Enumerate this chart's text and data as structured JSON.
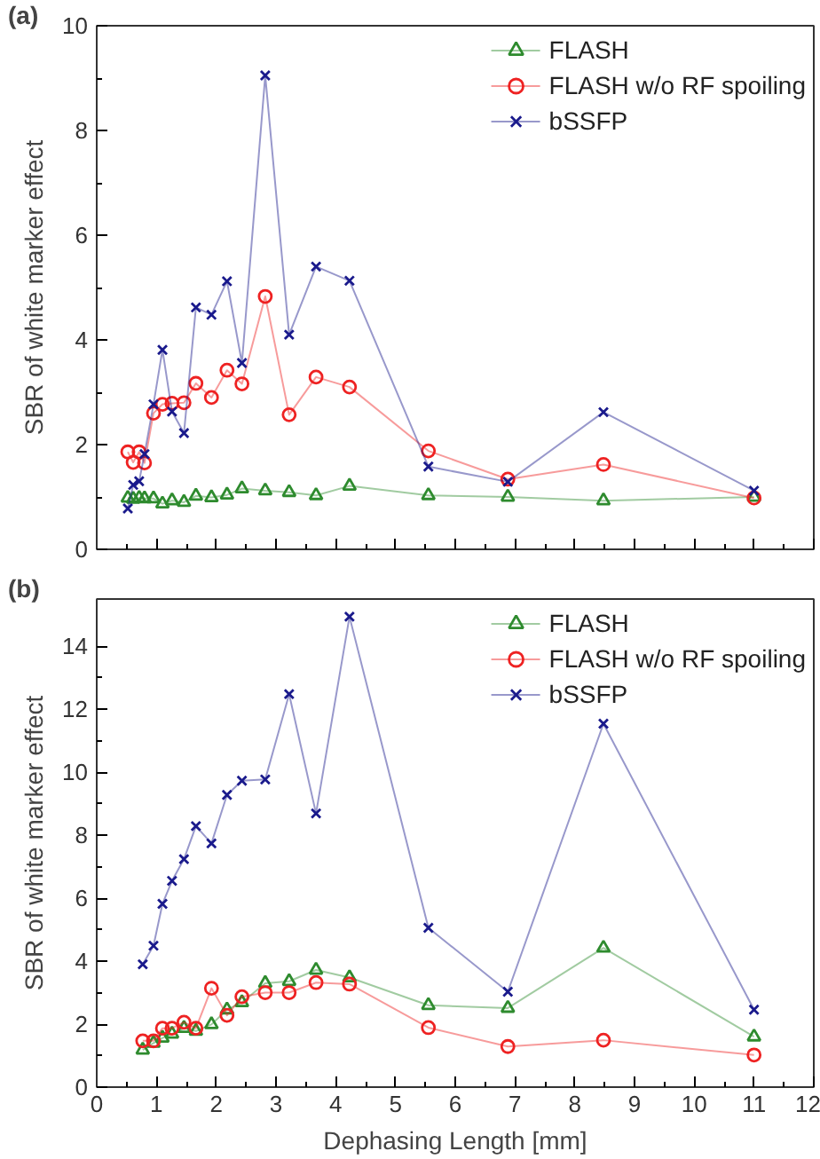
{
  "chart_data": [
    {
      "type": "line",
      "annotations": [
        {
          "text": "(a)"
        }
      ],
      "ylabel": "SBR of white marker effect",
      "xlim": [
        0,
        12
      ],
      "xticks": [
        0,
        1,
        2,
        3,
        4,
        5,
        6,
        7,
        8,
        9,
        10,
        11,
        12
      ],
      "ylim": [
        0,
        10
      ],
      "yticks": [
        0,
        2,
        4,
        6,
        8,
        10
      ],
      "tick_labels": "y",
      "legend": "top right",
      "grid": false,
      "x": [
        0.52,
        0.61,
        0.71,
        0.8,
        0.95,
        1.1,
        1.26,
        1.46,
        1.66,
        1.92,
        2.18,
        2.43,
        2.82,
        3.22,
        3.67,
        4.23,
        5.55,
        6.88,
        8.48,
        11.0
      ],
      "series": [
        {
          "name": "FLASH",
          "color": "#2e8b2e",
          "marker": "triangle",
          "values": [
            0.98,
            0.96,
            0.98,
            0.97,
            0.97,
            0.87,
            0.93,
            0.9,
            1.02,
            0.99,
            1.04,
            1.16,
            1.12,
            1.09,
            1.03,
            1.21,
            1.03,
            1.0,
            0.93,
            1.0
          ]
        },
        {
          "name": "FLASH w/o RF spoiling",
          "color": "#ee2222",
          "marker": "circle",
          "values": [
            1.86,
            1.66,
            1.86,
            1.65,
            2.6,
            2.77,
            2.79,
            2.8,
            3.17,
            2.9,
            3.42,
            3.16,
            4.83,
            2.57,
            3.29,
            3.1,
            1.88,
            1.34,
            1.62,
            0.98
          ]
        },
        {
          "name": "bSSFP",
          "color": "#1a1a8c",
          "marker": "cross",
          "values": [
            0.78,
            1.23,
            1.3,
            1.82,
            2.77,
            3.81,
            2.63,
            2.22,
            4.62,
            4.48,
            5.12,
            3.56,
            9.05,
            4.1,
            5.4,
            5.13,
            1.58,
            1.29,
            2.62,
            1.12
          ]
        }
      ]
    },
    {
      "type": "line",
      "annotations": [
        {
          "text": "(b)"
        }
      ],
      "xlabel": "Dephasing Length [mm]",
      "ylabel": "SBR of white marker effect",
      "xlim": [
        0,
        12
      ],
      "xticks": [
        0,
        1,
        2,
        3,
        4,
        5,
        6,
        7,
        8,
        9,
        10,
        11,
        12
      ],
      "ylim": [
        0,
        15.5
      ],
      "yticks": [
        0,
        2,
        4,
        6,
        8,
        10,
        12,
        14
      ],
      "legend": "top right",
      "grid": false,
      "x": [
        0.77,
        0.95,
        1.1,
        1.26,
        1.46,
        1.66,
        1.92,
        2.18,
        2.43,
        2.82,
        3.22,
        3.67,
        4.23,
        5.55,
        6.88,
        8.48,
        11.0
      ],
      "series": [
        {
          "name": "FLASH",
          "color": "#2e8b2e",
          "marker": "triangle",
          "values": [
            1.18,
            1.4,
            1.56,
            1.69,
            1.87,
            1.78,
            1.99,
            2.46,
            2.69,
            3.3,
            3.36,
            3.72,
            3.48,
            2.6,
            2.51,
            4.42,
            1.6
          ]
        },
        {
          "name": "FLASH w/o RF spoiling",
          "color": "#ee2222",
          "marker": "circle",
          "values": [
            1.47,
            1.47,
            1.87,
            1.87,
            2.06,
            1.87,
            3.14,
            2.28,
            2.87,
            3.0,
            3.0,
            3.32,
            3.27,
            1.89,
            1.29,
            1.49,
            1.02
          ]
        },
        {
          "name": "bSSFP",
          "color": "#1a1a8c",
          "marker": "cross",
          "values": [
            3.9,
            4.49,
            5.82,
            6.55,
            7.24,
            8.29,
            7.74,
            9.28,
            9.73,
            9.77,
            12.48,
            8.69,
            14.94,
            5.06,
            3.03,
            11.54,
            2.46
          ]
        }
      ]
    }
  ]
}
